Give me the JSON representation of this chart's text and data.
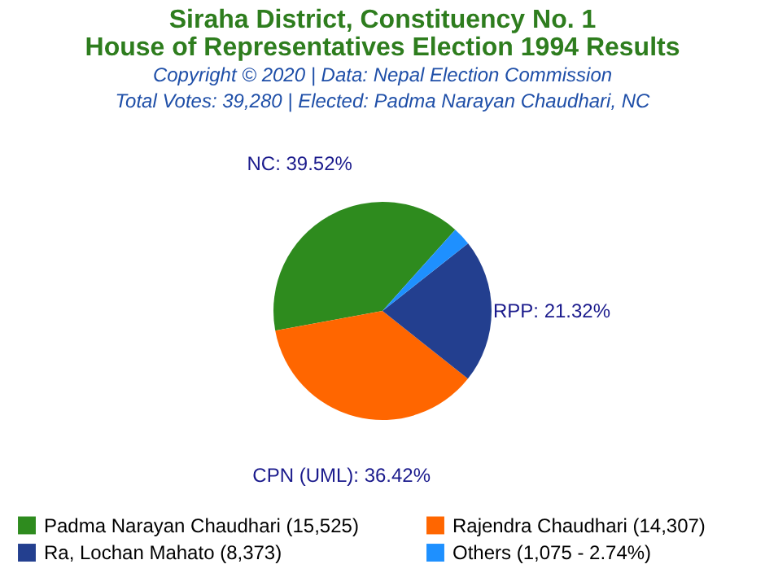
{
  "chart_data": {
    "type": "pie",
    "title": "Siraha District, Constituency No. 1\nHouse of Representatives Election 1994 Results",
    "subtitle": "Copyright © 2020 | Data: Nepal Election Commission",
    "annotations": [
      "Total Votes: 39,280 | Elected: Padma Narayan Chaudhari, NC"
    ],
    "categories": [
      "Padma Narayan Chaudhari (15,525)",
      "Rajendra Chaudhari (14,307)",
      "Ra, Lochan Mahato (8,373)",
      "Others (1,075 - 2.74%)"
    ],
    "values": [
      39.52,
      36.42,
      21.32,
      2.74
    ],
    "colors": [
      "#2e8b1e",
      "#ff6600",
      "#233f8f",
      "#1e90ff"
    ],
    "value_labels": [
      "NC: 39.52%",
      "CPN (UML): 36.42%",
      "RPP: 21.32%",
      null
    ],
    "legend": "bottom"
  }
}
